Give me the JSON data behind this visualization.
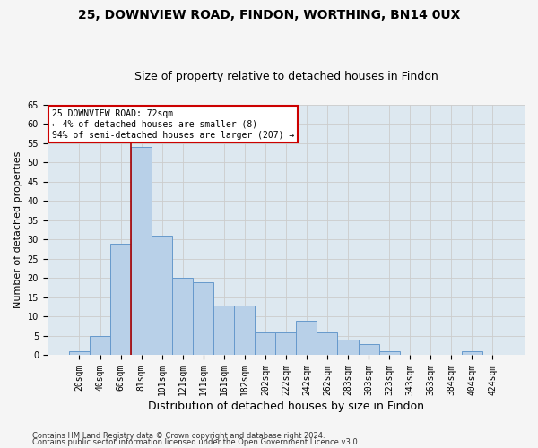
{
  "title1": "25, DOWNVIEW ROAD, FINDON, WORTHING, BN14 0UX",
  "title2": "Size of property relative to detached houses in Findon",
  "xlabel": "Distribution of detached houses by size in Findon",
  "ylabel": "Number of detached properties",
  "bar_labels": [
    "20sqm",
    "40sqm",
    "60sqm",
    "81sqm",
    "101sqm",
    "121sqm",
    "141sqm",
    "161sqm",
    "182sqm",
    "202sqm",
    "222sqm",
    "242sqm",
    "262sqm",
    "283sqm",
    "303sqm",
    "323sqm",
    "343sqm",
    "363sqm",
    "384sqm",
    "404sqm",
    "424sqm"
  ],
  "bar_values": [
    1,
    5,
    29,
    54,
    31,
    20,
    19,
    13,
    13,
    6,
    6,
    9,
    6,
    4,
    3,
    1,
    0,
    0,
    0,
    1,
    0
  ],
  "bar_color": "#b8d0e8",
  "bar_edge_color": "#6699cc",
  "vline_color": "#aa0000",
  "annotation_text": "25 DOWNVIEW ROAD: 72sqm\n← 4% of detached houses are smaller (8)\n94% of semi-detached houses are larger (207) →",
  "annotation_box_color": "#ffffff",
  "annotation_box_edge": "#cc0000",
  "ylim": [
    0,
    65
  ],
  "yticks": [
    0,
    5,
    10,
    15,
    20,
    25,
    30,
    35,
    40,
    45,
    50,
    55,
    60,
    65
  ],
  "grid_color": "#cccccc",
  "bg_color": "#dde8f0",
  "fig_bg_color": "#f5f5f5",
  "footnote1": "Contains HM Land Registry data © Crown copyright and database right 2024.",
  "footnote2": "Contains public sector information licensed under the Open Government Licence v3.0.",
  "title1_fontsize": 10,
  "title2_fontsize": 9,
  "xlabel_fontsize": 9,
  "ylabel_fontsize": 8,
  "tick_fontsize": 7,
  "annot_fontsize": 7,
  "footnote_fontsize": 6
}
